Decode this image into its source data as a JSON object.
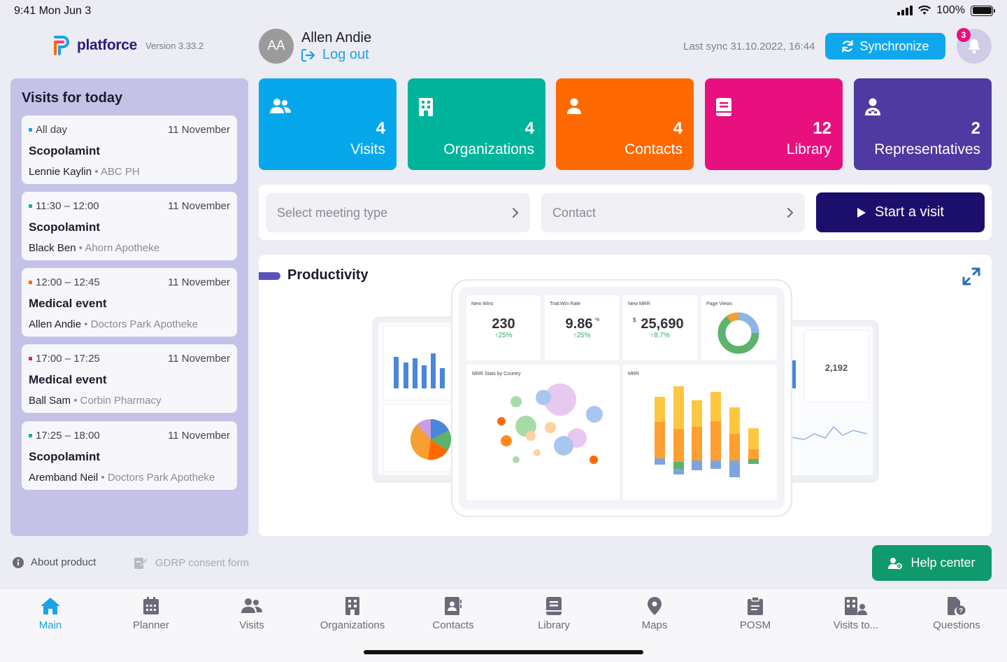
{
  "status_bar": {
    "time": "9:41  Mon Jun 3",
    "battery": "100%",
    "battery_level": 1.0
  },
  "header": {
    "logo_name": "platforce",
    "version": "Version 3.33.2",
    "avatar_initials": "AA",
    "user_name": "Allen Andie",
    "logout_label": "Log out",
    "last_sync": "Last sync 31.10.2022, 16:44",
    "sync_label": "Synchronize",
    "notification_count": "3"
  },
  "visits": {
    "title": "Visits for today",
    "items": [
      {
        "time": "All day",
        "date": "11 November",
        "title": "Scopolamint",
        "person": "Lennie Kaylin",
        "org": "ABC PH",
        "dot": "#11a7ee"
      },
      {
        "time": "11:30 – 12:00",
        "date": "11 November",
        "title": "Scopolamint",
        "person": "Black Ben",
        "org": "Ahorn Apotheke",
        "dot": "#10b39a"
      },
      {
        "time": "12:00 – 12:45",
        "date": "11 November",
        "title": "Medical event",
        "person": "Allen Andie",
        "org": "Doctors Park Apotheke",
        "dot": "#ff6a00"
      },
      {
        "time": "17:00 – 17:25",
        "date": "11 November",
        "title": "Medical event",
        "person": "Ball Sam",
        "org": "Corbin Pharmacy",
        "dot": "#e5127e"
      },
      {
        "time": "17:25 – 18:00",
        "date": "11 November",
        "title": "Scopolamint",
        "person": "Aremband Neil",
        "org": "Doctors Park Apotheke",
        "dot": "#10b39a"
      }
    ]
  },
  "tiles": [
    {
      "count": "4",
      "label": "Visits",
      "color": "#07a8eb",
      "icon": "people-icon"
    },
    {
      "count": "4",
      "label": "Organizations",
      "color": "#00b49c",
      "icon": "building-icon"
    },
    {
      "count": "4",
      "label": "Contacts",
      "color": "#ff6a00",
      "icon": "person-icon"
    },
    {
      "count": "12",
      "label": "Library",
      "color": "#e8107f",
      "icon": "book-icon"
    },
    {
      "count": "2",
      "label": "Representatives",
      "color": "#4e3aa0",
      "icon": "representative-icon"
    }
  ],
  "meeting": {
    "type_placeholder": "Select meeting type",
    "contact_placeholder": "Contact",
    "start_label": "Start a visit"
  },
  "productivity": {
    "title": "Productivity",
    "preview": {
      "new_wins_label": "New Wins",
      "new_wins": "230",
      "new_wins_change": "↑25%",
      "trial_label": "Trial:Win Rate",
      "trial": "9.86",
      "trial_unit": "%",
      "trial_change": "↑25%",
      "mrr_label": "New MRR",
      "mrr": "25,690",
      "mrr_prefix": "$",
      "mrr_change": "↑8.7%",
      "page_views_label": "Page Views",
      "mrr_country_label": "MRR Stats by Country",
      "mrr_chart_label": "MRR",
      "side_value": "2,192"
    }
  },
  "footer": {
    "about_label": "About product",
    "gdrp_label": "GDRP consent form",
    "help_label": "Help center"
  },
  "tabbar": {
    "items": [
      {
        "label": "Main",
        "icon": "home-icon",
        "active": true
      },
      {
        "label": "Planner",
        "icon": "calendar-icon"
      },
      {
        "label": "Visits",
        "icon": "people-icon"
      },
      {
        "label": "Organizations",
        "icon": "building-icon"
      },
      {
        "label": "Contacts",
        "icon": "contact-card-icon"
      },
      {
        "label": "Library",
        "icon": "book-icon"
      },
      {
        "label": "Maps",
        "icon": "map-pin-icon"
      },
      {
        "label": "POSM",
        "icon": "clipboard-icon"
      },
      {
        "label": "Visits to...",
        "icon": "visits-to-icon"
      },
      {
        "label": "Questions",
        "icon": "questions-icon"
      }
    ]
  }
}
